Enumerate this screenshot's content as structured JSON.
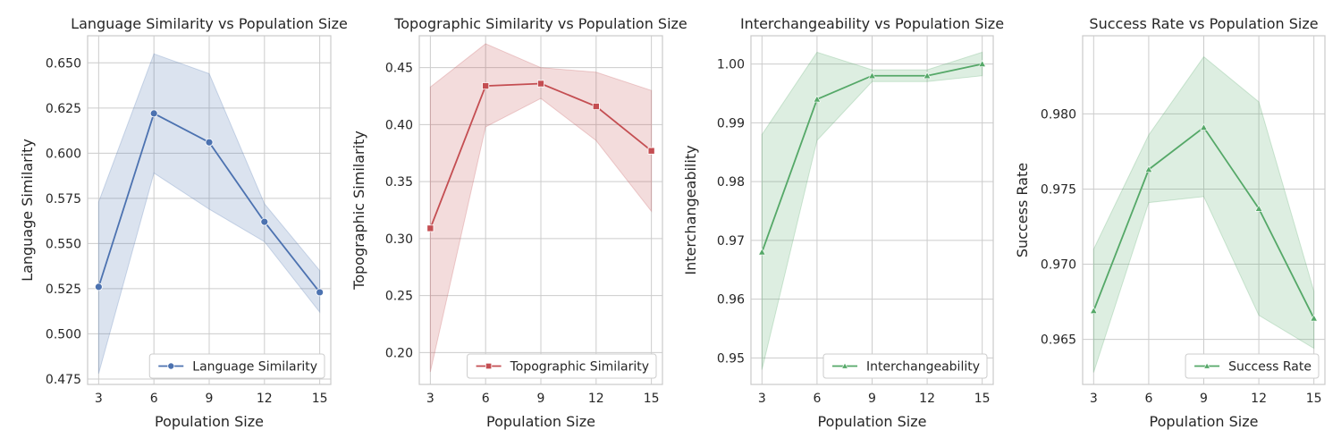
{
  "chart_data": [
    {
      "type": "line",
      "title": "Language Similarity vs Population Size",
      "xlabel": "Population Size",
      "ylabel": "Language Similarity",
      "x": [
        3,
        6,
        9,
        12,
        15
      ],
      "xticks": [
        "3",
        "6",
        "9",
        "12",
        "15"
      ],
      "ylim": [
        0.472,
        0.665
      ],
      "yticks": [
        "0.475",
        "0.500",
        "0.525",
        "0.550",
        "0.575",
        "0.600",
        "0.625",
        "0.650"
      ],
      "grid": true,
      "legend_placement": "lower-right",
      "color": "#4c72b0",
      "marker": "circle",
      "series": [
        {
          "name": "Language Similarity",
          "values": [
            0.526,
            0.622,
            0.606,
            0.562,
            0.523
          ],
          "ci_lower": [
            0.478,
            0.589,
            0.569,
            0.551,
            0.512
          ],
          "ci_upper": [
            0.573,
            0.655,
            0.644,
            0.572,
            0.535
          ]
        }
      ]
    },
    {
      "type": "line",
      "title": "Topographic Similarity vs Population Size",
      "xlabel": "Population Size",
      "ylabel": "Topographic Similarity",
      "x": [
        3,
        6,
        9,
        12,
        15
      ],
      "xticks": [
        "3",
        "6",
        "9",
        "12",
        "15"
      ],
      "ylim": [
        0.172,
        0.478
      ],
      "yticks": [
        "0.20",
        "0.25",
        "0.30",
        "0.35",
        "0.40",
        "0.45"
      ],
      "grid": true,
      "legend_placement": "lower-right",
      "color": "#c44e52",
      "marker": "square",
      "series": [
        {
          "name": "Topographic Similarity",
          "values": [
            0.309,
            0.434,
            0.436,
            0.416,
            0.377
          ],
          "ci_lower": [
            0.183,
            0.398,
            0.423,
            0.386,
            0.324
          ],
          "ci_upper": [
            0.433,
            0.471,
            0.45,
            0.446,
            0.43
          ]
        }
      ]
    },
    {
      "type": "line",
      "title": "Interchangeability vs Population Size",
      "xlabel": "Population Size",
      "ylabel": "Interchangeability",
      "x": [
        3,
        6,
        9,
        12,
        15
      ],
      "xticks": [
        "3",
        "6",
        "9",
        "12",
        "15"
      ],
      "ylim": [
        0.9455,
        1.0048
      ],
      "yticks": [
        "0.95",
        "0.96",
        "0.97",
        "0.98",
        "0.99",
        "1.00"
      ],
      "grid": true,
      "legend_placement": "lower-right",
      "color": "#55a868",
      "marker": "triangle",
      "series": [
        {
          "name": "Interchangeability",
          "values": [
            0.968,
            0.994,
            0.998,
            0.998,
            1.0
          ],
          "ci_lower": [
            0.948,
            0.987,
            0.997,
            0.997,
            0.998
          ],
          "ci_upper": [
            0.988,
            1.002,
            0.999,
            0.999,
            1.002
          ]
        }
      ]
    },
    {
      "type": "line",
      "title": "Success Rate vs Population Size",
      "xlabel": "Population Size",
      "ylabel": "Success Rate",
      "x": [
        3,
        6,
        9,
        12,
        15
      ],
      "xticks": [
        "3",
        "6",
        "9",
        "12",
        "15"
      ],
      "ylim": [
        0.962,
        0.9852
      ],
      "yticks": [
        "0.965",
        "0.970",
        "0.975",
        "0.980"
      ],
      "grid": true,
      "legend_placement": "lower-right",
      "color": "#55a868",
      "marker": "triangle",
      "series": [
        {
          "name": "Success Rate",
          "values": [
            0.9669,
            0.9763,
            0.9791,
            0.9737,
            0.9664
          ],
          "ci_lower": [
            0.9628,
            0.9741,
            0.9745,
            0.9666,
            0.9644
          ],
          "ci_upper": [
            0.971,
            0.9786,
            0.9838,
            0.9808,
            0.9682
          ]
        }
      ]
    }
  ]
}
